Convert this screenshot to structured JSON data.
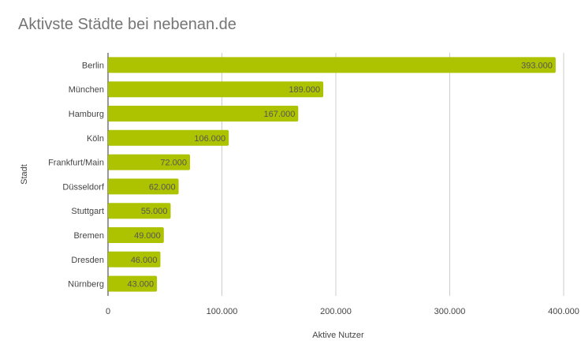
{
  "chart_data": {
    "type": "bar",
    "orientation": "horizontal",
    "title": "Aktivste Städte bei nebenan.de",
    "xlabel": "Aktive Nutzer",
    "ylabel": "Stadt",
    "categories": [
      "Berlin",
      "München",
      "Hamburg",
      "Köln",
      "Frankfurt/Main",
      "Düsseldorf",
      "Stuttgart",
      "Bremen",
      "Dresden",
      "Nürnberg"
    ],
    "values": [
      393000,
      189000,
      167000,
      106000,
      72000,
      62000,
      55000,
      49000,
      46000,
      43000
    ],
    "value_labels": [
      "393.000",
      "189.000",
      "167.000",
      "106.000",
      "72.000",
      "62.000",
      "55.000",
      "49.000",
      "46.000",
      "43.000"
    ],
    "xlim": [
      0,
      400000
    ],
    "xticks": [
      0,
      100000,
      200000,
      300000,
      400000
    ],
    "xtick_labels": [
      "0",
      "100.000",
      "200.000",
      "300.000",
      "400.000"
    ],
    "grid": true,
    "legend": "none",
    "bar_color": "#aec300"
  }
}
